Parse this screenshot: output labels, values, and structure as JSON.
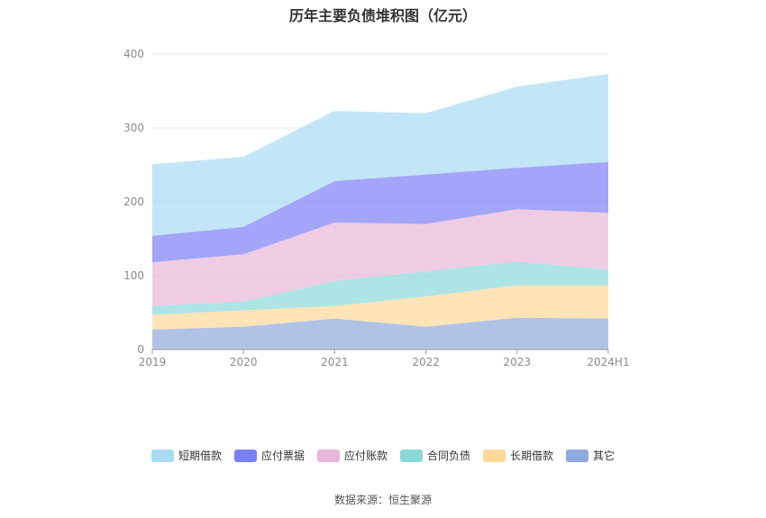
{
  "chart_data": {
    "type": "area",
    "stacked": true,
    "title": "历年主要负债堆积图（亿元）",
    "categories": [
      "2019",
      "2020",
      "2021",
      "2022",
      "2023",
      "2024H1"
    ],
    "ylim": [
      0,
      400
    ],
    "yticks": [
      0,
      100,
      200,
      300,
      400
    ],
    "grid": true,
    "legend_position": "bottom",
    "series": [
      {
        "name": "其它",
        "color": "#8faadc",
        "values": [
          27,
          31,
          42,
          31,
          43,
          42
        ]
      },
      {
        "name": "长期借款",
        "color": "#ffd89a",
        "values": [
          20,
          22,
          17,
          41,
          44,
          45
        ]
      },
      {
        "name": "合同负债",
        "color": "#8ad9d9",
        "values": [
          12,
          12,
          34,
          34,
          32,
          21
        ]
      },
      {
        "name": "应付账款",
        "color": "#e8b6d8",
        "values": [
          59,
          64,
          79,
          64,
          71,
          77
        ]
      },
      {
        "name": "应付票据",
        "color": "#7b7ff5",
        "values": [
          36,
          37,
          56,
          67,
          56,
          69
        ]
      },
      {
        "name": "短期借款",
        "color": "#a8dcf5",
        "values": [
          97,
          95,
          95,
          83,
          110,
          119
        ]
      }
    ],
    "legend_order": [
      "短期借款",
      "应付票据",
      "应付账款",
      "合同负债",
      "长期借款",
      "其它"
    ]
  },
  "source_text": "数据来源：恒生聚源"
}
